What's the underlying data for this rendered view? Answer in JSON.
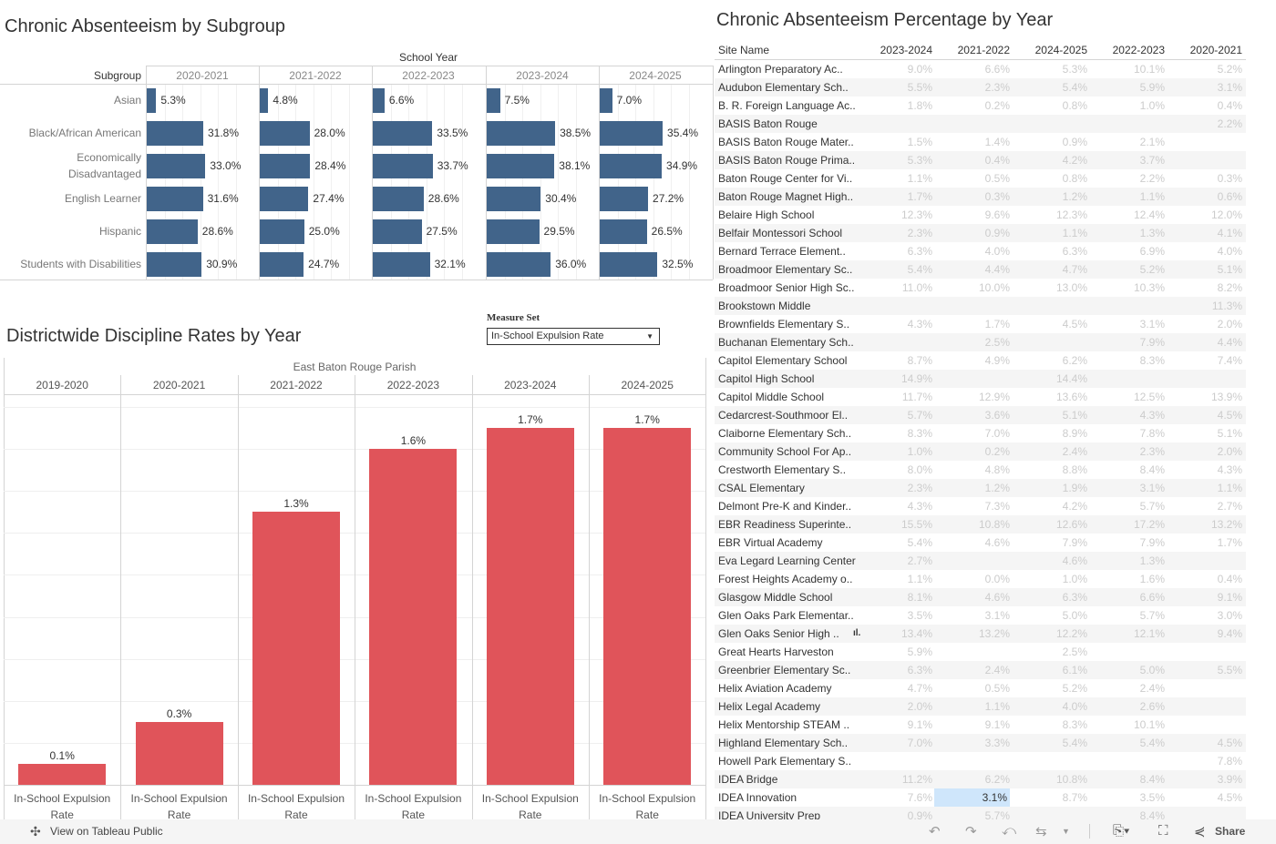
{
  "subgroup_chart": {
    "title": "Chronic Absenteeism by Subgroup",
    "column_header": "School Year",
    "row_header": "Subgroup",
    "chart_data": {
      "type": "bar",
      "orientation": "horizontal",
      "categories": [
        "Asian",
        "Black/African American",
        "Economically Disadvantaged",
        "English Learner",
        "Hispanic",
        "Students with Disabilities"
      ],
      "series": [
        {
          "name": "2020-2021",
          "values": [
            5.3,
            31.8,
            33.0,
            31.6,
            28.6,
            30.9
          ]
        },
        {
          "name": "2021-2022",
          "values": [
            4.8,
            28.0,
            28.4,
            27.4,
            25.0,
            24.7
          ]
        },
        {
          "name": "2022-2023",
          "values": [
            6.6,
            33.5,
            33.7,
            28.6,
            27.5,
            32.1
          ]
        },
        {
          "name": "2023-2024",
          "values": [
            7.5,
            38.5,
            38.1,
            30.4,
            29.5,
            36.0
          ]
        },
        {
          "name": "2024-2025",
          "values": [
            7.0,
            35.4,
            34.9,
            27.2,
            26.5,
            32.5
          ]
        }
      ],
      "value_format": "%",
      "xlim": [
        0,
        60
      ],
      "color": "#41648a"
    }
  },
  "discipline_chart": {
    "title": "Districtwide Discipline Rates by Year",
    "measure_set_label": "Measure Set",
    "measure_set_value": "In-School Expulsion Rate",
    "group_header": "East Baton Rouge Parish",
    "chart_data": {
      "type": "bar",
      "categories": [
        "2019-2020",
        "2020-2021",
        "2021-2022",
        "2022-2023",
        "2023-2024",
        "2024-2025"
      ],
      "bar_label": "In-School Expulsion Rate",
      "values": [
        0.1,
        0.3,
        1.3,
        1.6,
        1.7,
        1.7
      ],
      "ylim": [
        0,
        1.86
      ],
      "gridlines": true,
      "color": "#e0545a"
    }
  },
  "absenteeism_table": {
    "title": "Chronic Absenteeism Percentage by Year",
    "columns": [
      "Site Name",
      "2023-2024",
      "2021-2022",
      "2024-2025",
      "2022-2023",
      "2020-2021"
    ],
    "rows": [
      [
        "Arlington Preparatory Ac..",
        "9.0%",
        "6.6%",
        "5.3%",
        "10.1%",
        "5.2%"
      ],
      [
        "Audubon Elementary Sch..",
        "5.5%",
        "2.3%",
        "5.4%",
        "5.9%",
        "3.1%"
      ],
      [
        "B. R. Foreign Language Ac..",
        "1.8%",
        "0.2%",
        "0.8%",
        "1.0%",
        "0.4%"
      ],
      [
        "BASIS Baton Rouge",
        "",
        "",
        "",
        "",
        "2.2%"
      ],
      [
        "BASIS Baton Rouge Mater..",
        "1.5%",
        "1.4%",
        "0.9%",
        "2.1%",
        ""
      ],
      [
        "BASIS Baton Rouge Prima..",
        "5.3%",
        "0.4%",
        "4.2%",
        "3.7%",
        ""
      ],
      [
        "Baton Rouge Center for Vi..",
        "1.1%",
        "0.5%",
        "0.8%",
        "2.2%",
        "0.3%"
      ],
      [
        "Baton Rouge Magnet High..",
        "1.7%",
        "0.3%",
        "1.2%",
        "1.1%",
        "0.6%"
      ],
      [
        "Belaire High School",
        "12.3%",
        "9.6%",
        "12.3%",
        "12.4%",
        "12.0%"
      ],
      [
        "Belfair Montessori School",
        "2.3%",
        "0.9%",
        "1.1%",
        "1.3%",
        "4.1%"
      ],
      [
        "Bernard Terrace Element..",
        "6.3%",
        "4.0%",
        "6.3%",
        "6.9%",
        "4.0%"
      ],
      [
        "Broadmoor Elementary Sc..",
        "5.4%",
        "4.4%",
        "4.7%",
        "5.2%",
        "5.1%"
      ],
      [
        "Broadmoor Senior High Sc..",
        "11.0%",
        "10.0%",
        "13.0%",
        "10.3%",
        "8.2%"
      ],
      [
        "Brookstown Middle",
        "",
        "",
        "",
        "",
        "11.3%"
      ],
      [
        "Brownfields Elementary S..",
        "4.3%",
        "1.7%",
        "4.5%",
        "3.1%",
        "2.0%"
      ],
      [
        "Buchanan Elementary Sch..",
        "",
        "2.5%",
        "",
        "7.9%",
        "4.4%"
      ],
      [
        "Capitol Elementary School",
        "8.7%",
        "4.9%",
        "6.2%",
        "8.3%",
        "7.4%"
      ],
      [
        "Capitol High School",
        "14.9%",
        "",
        "14.4%",
        "",
        ""
      ],
      [
        "Capitol Middle School",
        "11.7%",
        "12.9%",
        "13.6%",
        "12.5%",
        "13.9%"
      ],
      [
        "Cedarcrest-Southmoor El..",
        "5.7%",
        "3.6%",
        "5.1%",
        "4.3%",
        "4.5%"
      ],
      [
        "Claiborne Elementary Sch..",
        "8.3%",
        "7.0%",
        "8.9%",
        "7.8%",
        "5.1%"
      ],
      [
        "Community School For Ap..",
        "1.0%",
        "0.2%",
        "2.4%",
        "2.3%",
        "2.0%"
      ],
      [
        "Crestworth Elementary S..",
        "8.0%",
        "4.8%",
        "8.8%",
        "8.4%",
        "4.3%"
      ],
      [
        "CSAL Elementary",
        "2.3%",
        "1.2%",
        "1.9%",
        "3.1%",
        "1.1%"
      ],
      [
        "Delmont Pre-K and Kinder..",
        "4.3%",
        "7.3%",
        "4.2%",
        "5.7%",
        "2.7%"
      ],
      [
        "EBR Readiness Superinte..",
        "15.5%",
        "10.8%",
        "12.6%",
        "17.2%",
        "13.2%"
      ],
      [
        "EBR Virtual Academy",
        "5.4%",
        "4.6%",
        "7.9%",
        "7.9%",
        "1.7%"
      ],
      [
        "Eva Legard Learning Center",
        "2.7%",
        "",
        "4.6%",
        "1.3%",
        ""
      ],
      [
        "Forest Heights Academy o..",
        "1.1%",
        "0.0%",
        "1.0%",
        "1.6%",
        "0.4%"
      ],
      [
        "Glasgow Middle School",
        "8.1%",
        "4.6%",
        "6.3%",
        "6.6%",
        "9.1%"
      ],
      [
        "Glen Oaks Park Elementar..",
        "3.5%",
        "3.1%",
        "5.0%",
        "5.7%",
        "3.0%"
      ],
      [
        "Glen Oaks Senior High ..",
        "13.4%",
        "13.2%",
        "12.2%",
        "12.1%",
        "9.4%"
      ],
      [
        "Great Hearts Harveston",
        "5.9%",
        "",
        "2.5%",
        "",
        ""
      ],
      [
        "Greenbrier Elementary Sc..",
        "6.3%",
        "2.4%",
        "6.1%",
        "5.0%",
        "5.5%"
      ],
      [
        "Helix Aviation Academy",
        "4.7%",
        "0.5%",
        "5.2%",
        "2.4%",
        ""
      ],
      [
        "Helix Legal Academy",
        "2.0%",
        "1.1%",
        "4.0%",
        "2.6%",
        ""
      ],
      [
        "Helix Mentorship STEAM ..",
        "9.1%",
        "9.1%",
        "8.3%",
        "10.1%",
        ""
      ],
      [
        "Highland Elementary Sch..",
        "7.0%",
        "3.3%",
        "5.4%",
        "5.4%",
        "4.5%"
      ],
      [
        "Howell Park Elementary S..",
        "",
        "",
        "",
        "",
        "7.8%"
      ],
      [
        "IDEA Bridge",
        "11.2%",
        "6.2%",
        "10.8%",
        "8.4%",
        "3.9%"
      ],
      [
        "IDEA Innovation",
        "7.6%",
        "3.1%",
        "8.7%",
        "3.5%",
        "4.5%"
      ],
      [
        "IDEA University Prep",
        "0.9%",
        "5.7%",
        "",
        "8.4%",
        ""
      ]
    ],
    "highlighted_cell": {
      "row": 40,
      "col": 2
    },
    "highlight_color": "#cfe6fb"
  },
  "toolbar": {
    "view_on_public": "View on Tableau Public",
    "share": "Share"
  }
}
